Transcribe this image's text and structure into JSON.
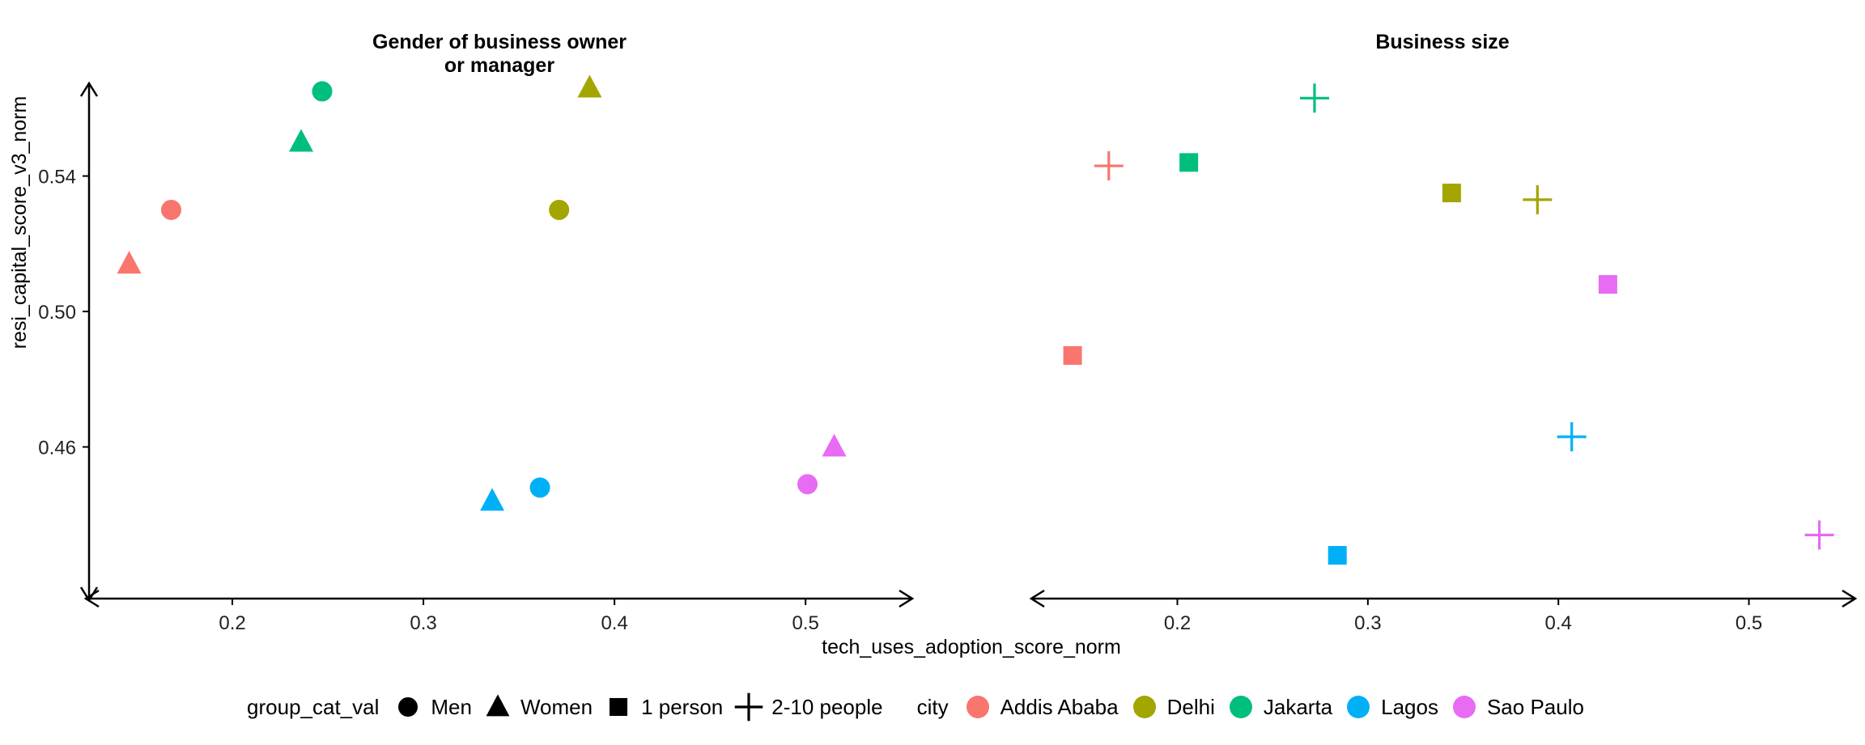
{
  "chart_data": [
    {
      "type": "scatter",
      "title": "Gender of business owner\nor manager",
      "xlabel": "tech_uses_adoption_score_norm",
      "ylabel": "resi_capital_score_v3_norm",
      "xlim": [
        0.125,
        0.555
      ],
      "ylim": [
        0.42,
        0.57
      ],
      "xticks": [
        0.2,
        0.3,
        0.4,
        0.5
      ],
      "yticks": [
        0.46,
        0.5,
        0.54
      ],
      "points": [
        {
          "city": "Addis Ababa",
          "group": "Men",
          "x": 0.168,
          "y": 0.53
        },
        {
          "city": "Addis Ababa",
          "group": "Women",
          "x": 0.146,
          "y": 0.514
        },
        {
          "city": "Delhi",
          "group": "Men",
          "x": 0.371,
          "y": 0.53
        },
        {
          "city": "Delhi",
          "group": "Women",
          "x": 0.387,
          "y": 0.566
        },
        {
          "city": "Jakarta",
          "group": "Men",
          "x": 0.247,
          "y": 0.565
        },
        {
          "city": "Jakarta",
          "group": "Women",
          "x": 0.236,
          "y": 0.55
        },
        {
          "city": "Lagos",
          "group": "Men",
          "x": 0.361,
          "y": 0.448
        },
        {
          "city": "Lagos",
          "group": "Women",
          "x": 0.336,
          "y": 0.444
        },
        {
          "city": "Sao Paulo",
          "group": "Men",
          "x": 0.501,
          "y": 0.449
        },
        {
          "city": "Sao Paulo",
          "group": "Women",
          "x": 0.515,
          "y": 0.46
        }
      ]
    },
    {
      "type": "scatter",
      "title": "Business size",
      "xlabel": "tech_uses_adoption_score_norm",
      "ylabel": "resi_capital_score_v3_norm",
      "xlim": [
        0.125,
        0.555
      ],
      "ylim": [
        0.42,
        0.57
      ],
      "xticks": [
        0.2,
        0.3,
        0.4,
        0.5
      ],
      "yticks": [
        0.46,
        0.5,
        0.54
      ],
      "points": [
        {
          "city": "Addis Ababa",
          "group": "1 person",
          "x": 0.145,
          "y": 0.487
        },
        {
          "city": "Addis Ababa",
          "group": "2-10 people",
          "x": 0.164,
          "y": 0.543
        },
        {
          "city": "Delhi",
          "group": "1 person",
          "x": 0.344,
          "y": 0.535
        },
        {
          "city": "Delhi",
          "group": "2-10 people",
          "x": 0.389,
          "y": 0.533
        },
        {
          "city": "Jakarta",
          "group": "1 person",
          "x": 0.206,
          "y": 0.544
        },
        {
          "city": "Jakarta",
          "group": "2-10 people",
          "x": 0.272,
          "y": 0.563
        },
        {
          "city": "Lagos",
          "group": "1 person",
          "x": 0.284,
          "y": 0.428
        },
        {
          "city": "Lagos",
          "group": "2-10 people",
          "x": 0.407,
          "y": 0.463
        },
        {
          "city": "Sao Paulo",
          "group": "1 person",
          "x": 0.426,
          "y": 0.508
        },
        {
          "city": "Sao Paulo",
          "group": "2-10 people",
          "x": 0.537,
          "y": 0.434
        }
      ]
    }
  ],
  "colors": {
    "Addis Ababa": "#F8766D",
    "Delhi": "#A3A500",
    "Jakarta": "#00BF7D",
    "Lagos": "#00B0F6",
    "Sao Paulo": "#E76BF3"
  },
  "shapes": {
    "Men": "circle",
    "Women": "triangle",
    "1 person": "square",
    "2-10 people": "plus"
  },
  "legend": {
    "shape_title": "group_cat_val",
    "shape_items": [
      "Men",
      "Women",
      "1 person",
      "2-10 people"
    ],
    "color_title": "city",
    "color_items": [
      "Addis Ababa",
      "Delhi",
      "Jakarta",
      "Lagos",
      "Sao Paulo"
    ]
  }
}
